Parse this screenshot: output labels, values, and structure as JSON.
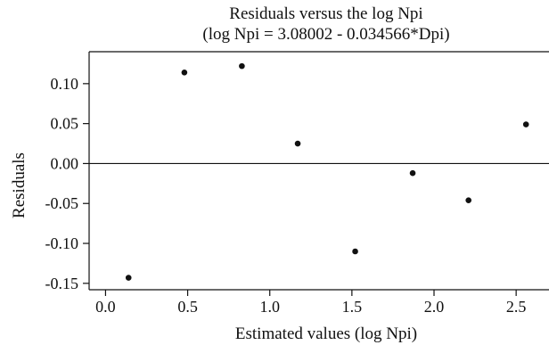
{
  "chart_data": {
    "type": "scatter",
    "title": "Residuals versus the log Npi",
    "subtitle": "(log Npi = 3.08002 - 0.034566*Dpi)",
    "xlabel": "Estimated values (log Npi)",
    "ylabel": "Residuals",
    "xlim": [
      -0.1,
      2.7
    ],
    "ylim": [
      -0.158,
      0.14
    ],
    "xticks": [
      0.0,
      0.5,
      1.0,
      1.5,
      2.0,
      2.5
    ],
    "xtick_labels": [
      "0.0",
      "0.5",
      "1.0",
      "1.5",
      "2.0",
      "2.5"
    ],
    "yticks": [
      -0.15,
      -0.1,
      -0.05,
      0.0,
      0.05,
      0.1
    ],
    "ytick_labels": [
      "-0.15",
      "-0.10",
      "-0.05",
      "0.00",
      "0.05",
      "0.10"
    ],
    "reference_line_y": 0.0,
    "grid": false,
    "points": [
      {
        "x": 0.14,
        "y": -0.143
      },
      {
        "x": 0.48,
        "y": 0.114
      },
      {
        "x": 0.83,
        "y": 0.122
      },
      {
        "x": 1.17,
        "y": 0.025
      },
      {
        "x": 1.52,
        "y": -0.11
      },
      {
        "x": 1.87,
        "y": -0.012
      },
      {
        "x": 2.21,
        "y": -0.046
      },
      {
        "x": 2.56,
        "y": 0.049
      }
    ]
  }
}
